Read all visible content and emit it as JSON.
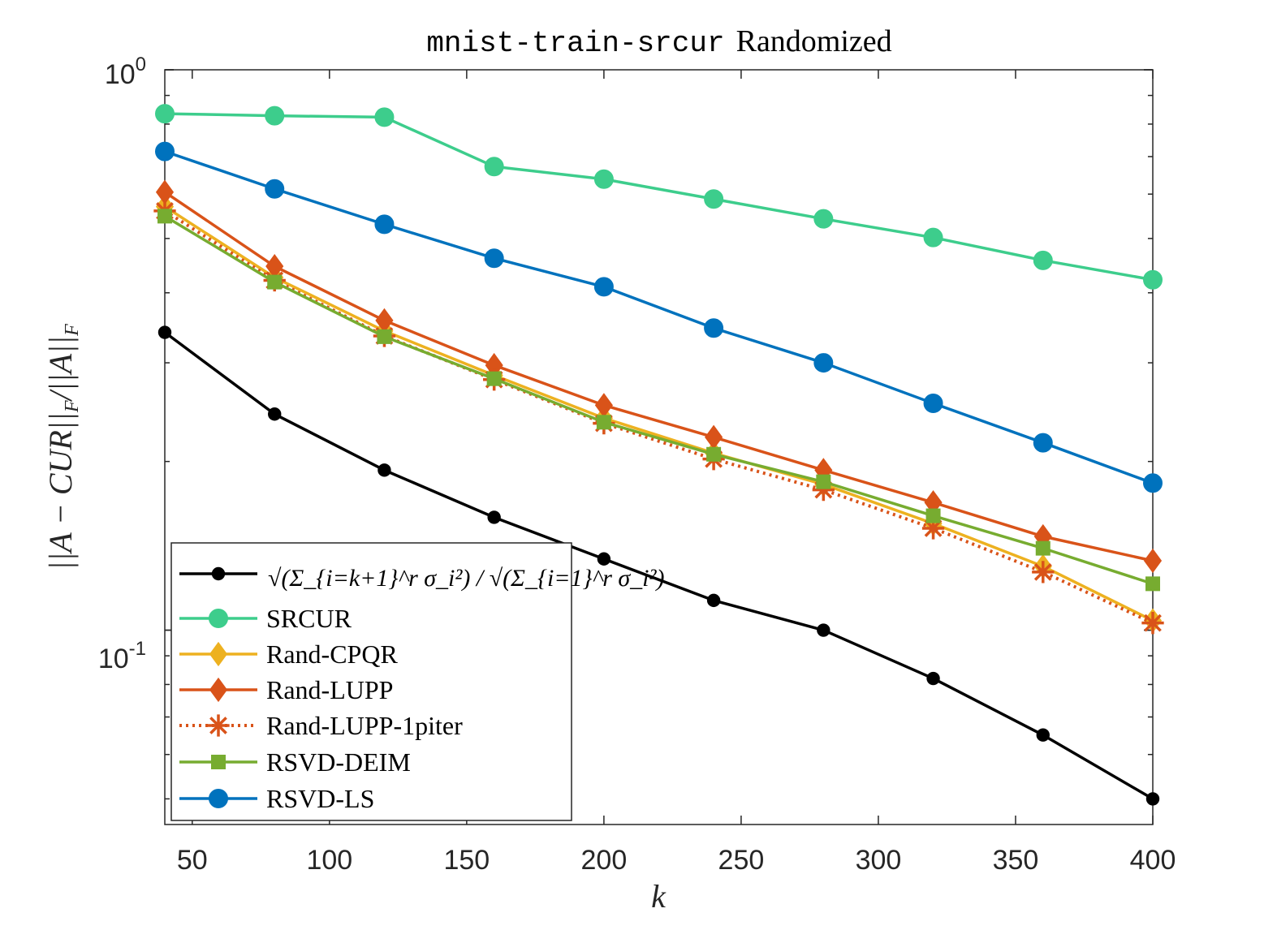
{
  "chart_data": {
    "type": "line",
    "title_code": "mnist-train-srcur",
    "title_text": "Randomized",
    "xlabel": "k",
    "ylabel": "||A − CUR||_F / ||A||_F",
    "x": [
      40,
      80,
      120,
      160,
      200,
      240,
      280,
      320,
      360,
      400
    ],
    "xlim": [
      40,
      400
    ],
    "ylim": [
      0.045,
      1.0
    ],
    "yscale": "log",
    "x_ticks": [
      50,
      100,
      150,
      200,
      250,
      300,
      350,
      400
    ],
    "x_tick_labels": [
      "50",
      "100",
      "150",
      "200",
      "250",
      "300",
      "350",
      "400"
    ],
    "y_tick_labels": [
      {
        "base": "10",
        "exp": "0",
        "value": 1.0
      },
      {
        "base": "10",
        "exp": "-1",
        "value": 0.1
      }
    ],
    "grid": false,
    "legend_position": "bottom-left",
    "series": [
      {
        "name": "√(Σ_{i=k+1}^r σ_i²) / √(Σ_{i=1}^r σ_i²)",
        "color": "#000000",
        "marker": "dot",
        "style": "solid",
        "values": [
          0.34,
          0.243,
          0.193,
          0.159,
          0.134,
          0.113,
          0.1,
          0.082,
          0.065,
          0.05
        ]
      },
      {
        "name": "SRCUR",
        "color": "#3DCD8C",
        "marker": "circle",
        "style": "solid",
        "values": [
          0.835,
          0.828,
          0.823,
          0.672,
          0.638,
          0.588,
          0.542,
          0.502,
          0.457,
          0.422
        ]
      },
      {
        "name": "Rand-CPQR",
        "color": "#EDB120",
        "marker": "diamond",
        "style": "solid",
        "values": [
          0.57,
          0.426,
          0.342,
          0.285,
          0.239,
          0.207,
          0.182,
          0.155,
          0.13,
          0.104
        ]
      },
      {
        "name": "Rand-LUPP",
        "color": "#D95319",
        "marker": "diamond",
        "style": "solid",
        "values": [
          0.605,
          0.446,
          0.357,
          0.297,
          0.252,
          0.221,
          0.193,
          0.169,
          0.147,
          0.133
        ]
      },
      {
        "name": "Rand-LUPP-1piter",
        "color": "#D95319",
        "marker": "asterisk",
        "style": "dotted",
        "values": [
          0.56,
          0.421,
          0.335,
          0.28,
          0.234,
          0.202,
          0.178,
          0.152,
          0.127,
          0.103
        ]
      },
      {
        "name": "RSVD-DEIM",
        "color": "#77AC30",
        "marker": "square",
        "style": "solid",
        "values": [
          0.548,
          0.418,
          0.334,
          0.281,
          0.235,
          0.206,
          0.184,
          0.16,
          0.14,
          0.121
        ]
      },
      {
        "name": "RSVD-LS",
        "color": "#0072BD",
        "marker": "circle",
        "style": "solid",
        "values": [
          0.715,
          0.613,
          0.53,
          0.461,
          0.41,
          0.346,
          0.3,
          0.254,
          0.216,
          0.183
        ]
      }
    ]
  }
}
